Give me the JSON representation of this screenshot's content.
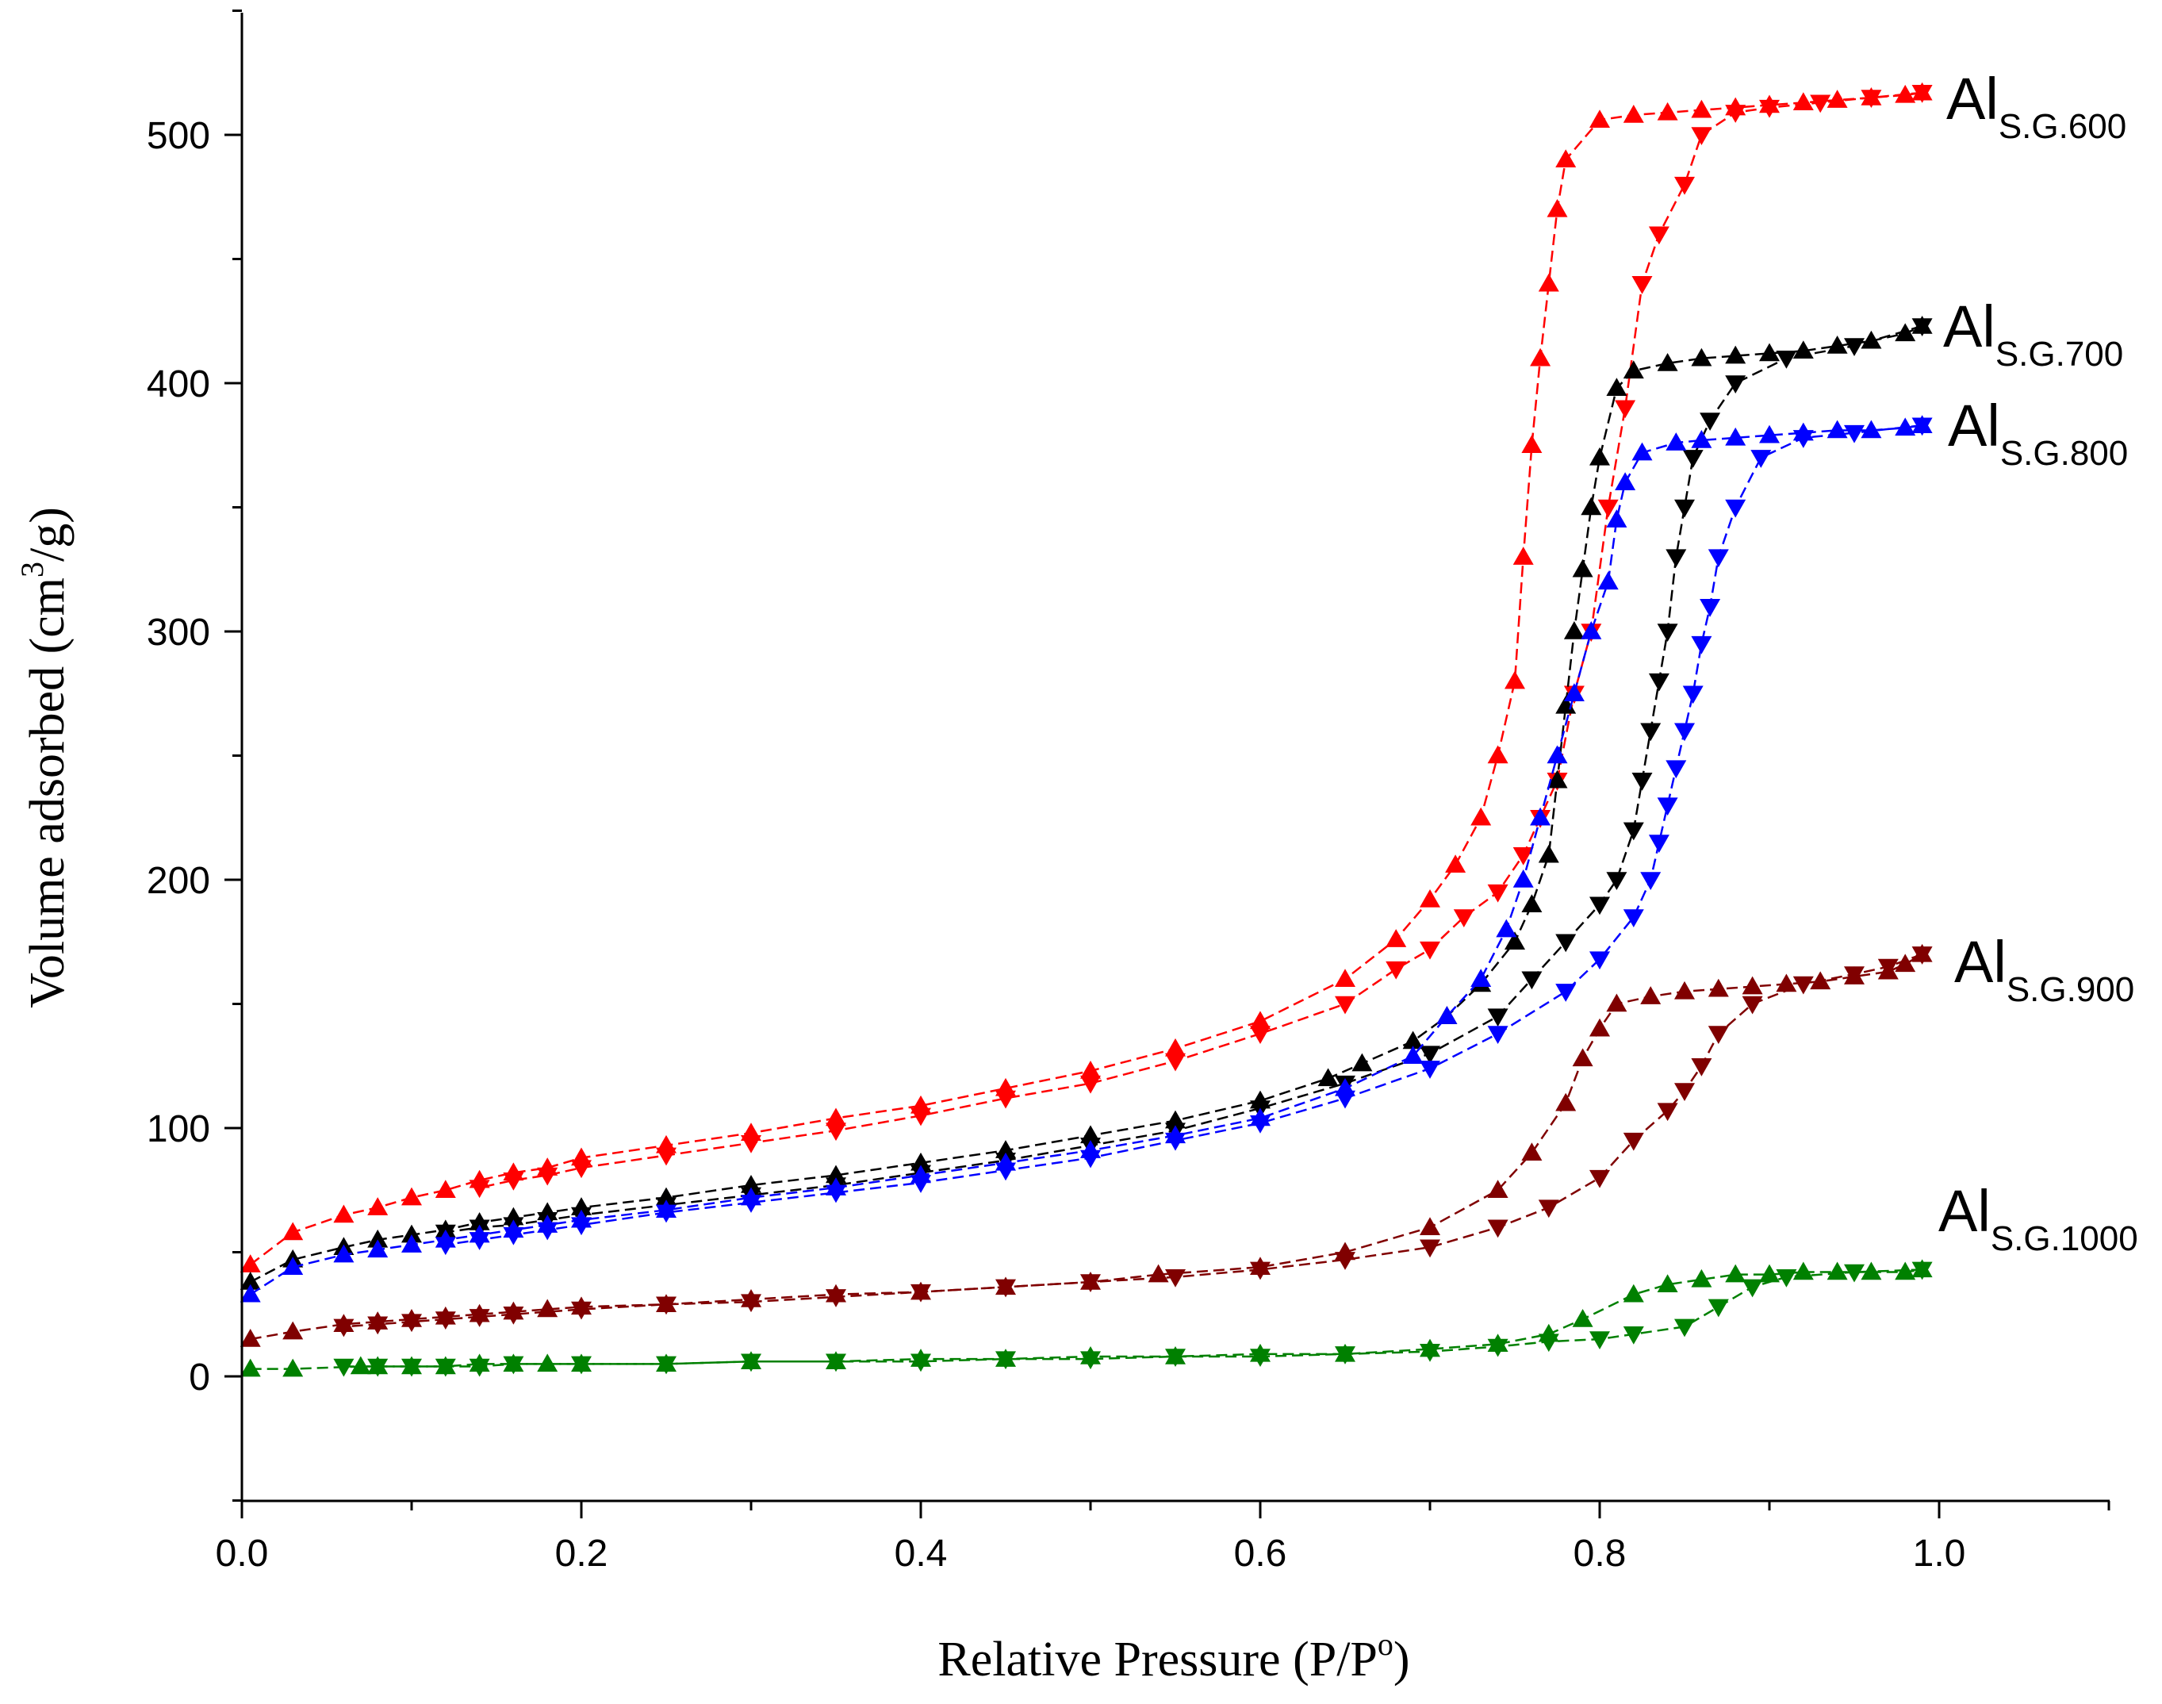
{
  "chart_data": {
    "type": "line",
    "title": "",
    "xlabel": "Relative Pressure (P/P",
    "xlabel_sup": "o",
    "xlabel_end": ")",
    "ylabel": "Volume adsorbed (cm",
    "ylabel_sup": "3",
    "ylabel_end": "/g)",
    "xlim": [
      0.0,
      1.1
    ],
    "ylim": [
      -50,
      550
    ],
    "xticks": [
      "0.0",
      "0.2",
      "0.4",
      "0.6",
      "0.8",
      "1.0"
    ],
    "yticks": [
      "0",
      "100",
      "200",
      "300",
      "400",
      "500"
    ],
    "grid": false,
    "series": [
      {
        "name": "Al S.G.600",
        "label_main": "Al",
        "label_sub": "S.G.600",
        "color": "#ff0000",
        "adsorption": {
          "x": [
            0.005,
            0.03,
            0.06,
            0.08,
            0.1,
            0.12,
            0.14,
            0.16,
            0.18,
            0.2,
            0.25,
            0.3,
            0.35,
            0.4,
            0.45,
            0.5,
            0.55,
            0.6,
            0.65,
            0.68,
            0.7,
            0.715,
            0.73,
            0.74,
            0.75,
            0.755,
            0.76,
            0.765,
            0.77,
            0.775,
            0.78,
            0.8,
            0.82,
            0.84,
            0.86,
            0.88,
            0.9,
            0.92,
            0.94,
            0.96,
            0.98,
            0.99
          ],
          "y": [
            45,
            58,
            65,
            68,
            72,
            75,
            79,
            82,
            84,
            88,
            93,
            98,
            104,
            109,
            116,
            123,
            132,
            143,
            160,
            176,
            192,
            206,
            225,
            250,
            280,
            330,
            375,
            410,
            440,
            470,
            490,
            506,
            508,
            509,
            510,
            511,
            512,
            513,
            514,
            515,
            516,
            517
          ]
        },
        "desorption": {
          "x": [
            0.99,
            0.96,
            0.93,
            0.9,
            0.88,
            0.86,
            0.85,
            0.835,
            0.825,
            0.815,
            0.805,
            0.795,
            0.785,
            0.775,
            0.765,
            0.755,
            0.74,
            0.72,
            0.7,
            0.68,
            0.65,
            0.6,
            0.55,
            0.5,
            0.45,
            0.4,
            0.35,
            0.3,
            0.25,
            0.2,
            0.18,
            0.16,
            0.14
          ],
          "y": [
            517,
            515,
            513,
            511,
            509,
            500,
            480,
            460,
            440,
            390,
            350,
            300,
            275,
            240,
            225,
            210,
            195,
            185,
            172,
            164,
            150,
            138,
            127,
            118,
            112,
            105,
            99,
            94,
            89,
            84,
            81,
            79,
            76
          ]
        }
      },
      {
        "name": "Al S.G.700",
        "label_main": "Al",
        "label_sub": "S.G.700",
        "color": "#000000",
        "adsorption": {
          "x": [
            0.005,
            0.03,
            0.06,
            0.08,
            0.1,
            0.12,
            0.14,
            0.16,
            0.18,
            0.2,
            0.25,
            0.3,
            0.35,
            0.4,
            0.45,
            0.5,
            0.55,
            0.6,
            0.64,
            0.66,
            0.69,
            0.71,
            0.73,
            0.75,
            0.76,
            0.77,
            0.775,
            0.78,
            0.785,
            0.79,
            0.795,
            0.8,
            0.81,
            0.82,
            0.84,
            0.86,
            0.88,
            0.9,
            0.92,
            0.94,
            0.96,
            0.98,
            0.99
          ],
          "y": [
            38,
            47,
            52,
            55,
            57,
            59,
            62,
            64,
            66,
            68,
            72,
            77,
            81,
            86,
            91,
            97,
            103,
            111,
            120,
            126,
            135,
            145,
            158,
            175,
            190,
            210,
            240,
            270,
            300,
            325,
            350,
            370,
            398,
            405,
            408,
            410,
            411,
            412,
            413,
            415,
            417,
            420,
            423
          ]
        },
        "desorption": {
          "x": [
            0.99,
            0.95,
            0.91,
            0.88,
            0.865,
            0.855,
            0.85,
            0.845,
            0.84,
            0.835,
            0.83,
            0.825,
            0.82,
            0.81,
            0.8,
            0.78,
            0.76,
            0.74,
            0.7,
            0.65,
            0.6,
            0.55,
            0.5,
            0.45,
            0.4,
            0.35,
            0.3,
            0.25,
            0.2,
            0.18,
            0.16,
            0.14,
            0.12
          ],
          "y": [
            423,
            415,
            410,
            400,
            385,
            370,
            350,
            330,
            300,
            280,
            260,
            240,
            220,
            200,
            190,
            175,
            160,
            145,
            130,
            118,
            108,
            99,
            93,
            87,
            82,
            77,
            73,
            69,
            65,
            63,
            61,
            60,
            58
          ]
        }
      },
      {
        "name": "Al S.G.800",
        "label_main": "Al",
        "label_sub": "S.G.800",
        "color": "#0000ff",
        "adsorption": {
          "x": [
            0.005,
            0.03,
            0.06,
            0.08,
            0.1,
            0.12,
            0.14,
            0.16,
            0.18,
            0.2,
            0.25,
            0.3,
            0.35,
            0.4,
            0.45,
            0.5,
            0.55,
            0.6,
            0.65,
            0.69,
            0.71,
            0.73,
            0.745,
            0.755,
            0.765,
            0.775,
            0.785,
            0.795,
            0.805,
            0.81,
            0.815,
            0.825,
            0.845,
            0.86,
            0.88,
            0.9,
            0.92,
            0.94,
            0.96,
            0.98,
            0.99
          ],
          "y": [
            33,
            44,
            49,
            51,
            53,
            55,
            57,
            59,
            61,
            63,
            67,
            72,
            76,
            81,
            86,
            91,
            97,
            104,
            116,
            129,
            145,
            160,
            180,
            200,
            225,
            250,
            275,
            300,
            320,
            345,
            360,
            372,
            376,
            377,
            378,
            379,
            380,
            381,
            381,
            382,
            383
          ]
        },
        "desorption": {
          "x": [
            0.99,
            0.95,
            0.92,
            0.895,
            0.88,
            0.87,
            0.865,
            0.86,
            0.855,
            0.85,
            0.845,
            0.84,
            0.835,
            0.83,
            0.82,
            0.8,
            0.78,
            0.74,
            0.7,
            0.65,
            0.6,
            0.55,
            0.5,
            0.45,
            0.4,
            0.35,
            0.3,
            0.25,
            0.2,
            0.18,
            0.16,
            0.14,
            0.12
          ],
          "y": [
            383,
            380,
            378,
            370,
            350,
            330,
            310,
            295,
            275,
            260,
            245,
            230,
            215,
            200,
            185,
            168,
            155,
            138,
            124,
            112,
            102,
            95,
            88,
            83,
            78,
            74,
            70,
            66,
            61,
            59,
            57,
            55,
            53
          ]
        }
      },
      {
        "name": "Al S.G.900",
        "label_main": "Al",
        "label_sub": "S.G.900",
        "color": "#800000",
        "adsorption": {
          "x": [
            0.005,
            0.03,
            0.06,
            0.08,
            0.1,
            0.12,
            0.14,
            0.16,
            0.18,
            0.2,
            0.25,
            0.3,
            0.35,
            0.4,
            0.45,
            0.5,
            0.54,
            0.6,
            0.65,
            0.7,
            0.74,
            0.76,
            0.78,
            0.79,
            0.8,
            0.81,
            0.83,
            0.85,
            0.87,
            0.89,
            0.91,
            0.93,
            0.95,
            0.97,
            0.98,
            0.99
          ],
          "y": [
            15,
            18,
            21,
            22,
            23,
            24,
            25,
            26,
            27,
            28,
            29,
            31,
            33,
            34,
            36,
            38,
            41,
            44,
            50,
            60,
            75,
            90,
            110,
            128,
            140,
            150,
            153,
            155,
            156,
            157,
            158,
            159,
            161,
            163,
            166,
            170
          ]
        },
        "desorption": {
          "x": [
            0.99,
            0.97,
            0.95,
            0.92,
            0.89,
            0.87,
            0.86,
            0.85,
            0.84,
            0.82,
            0.8,
            0.77,
            0.74,
            0.7,
            0.65,
            0.6,
            0.55,
            0.5,
            0.45,
            0.4,
            0.35,
            0.3,
            0.25,
            0.2,
            0.16,
            0.14,
            0.12,
            0.1,
            0.08,
            0.06
          ],
          "y": [
            170,
            165,
            162,
            158,
            150,
            138,
            125,
            115,
            107,
            95,
            80,
            68,
            60,
            52,
            47,
            43,
            40,
            38,
            36,
            34,
            32,
            30,
            29,
            27,
            25,
            24,
            23,
            22,
            21,
            20
          ]
        }
      },
      {
        "name": "Al S.G.1000",
        "label_main": "Al",
        "label_sub": "S.G.1000",
        "color": "#008000",
        "adsorption": {
          "x": [
            0.005,
            0.03,
            0.07,
            0.08,
            0.1,
            0.12,
            0.14,
            0.16,
            0.18,
            0.2,
            0.25,
            0.3,
            0.35,
            0.4,
            0.45,
            0.5,
            0.55,
            0.6,
            0.65,
            0.7,
            0.74,
            0.77,
            0.79,
            0.82,
            0.84,
            0.86,
            0.88,
            0.9,
            0.92,
            0.94,
            0.96,
            0.98,
            0.99
          ],
          "y": [
            3,
            3,
            4,
            4,
            4,
            4,
            5,
            5,
            5,
            5,
            5,
            6,
            6,
            7,
            7,
            8,
            8,
            9,
            9,
            11,
            13,
            17,
            23,
            33,
            37,
            39,
            41,
            41,
            42,
            42,
            42,
            42,
            43
          ]
        },
        "desorption": {
          "x": [
            0.99,
            0.95,
            0.91,
            0.89,
            0.87,
            0.85,
            0.82,
            0.8,
            0.77,
            0.74,
            0.7,
            0.65,
            0.6,
            0.55,
            0.5,
            0.45,
            0.4,
            0.35,
            0.3,
            0.25,
            0.2,
            0.16,
            0.14,
            0.12,
            0.1,
            0.08,
            0.06
          ],
          "y": [
            43,
            42,
            40,
            36,
            28,
            20,
            17,
            15,
            14,
            12,
            10,
            9,
            8,
            8,
            7,
            7,
            6,
            6,
            6,
            5,
            5,
            5,
            4,
            4,
            4,
            4,
            4
          ]
        }
      }
    ]
  }
}
